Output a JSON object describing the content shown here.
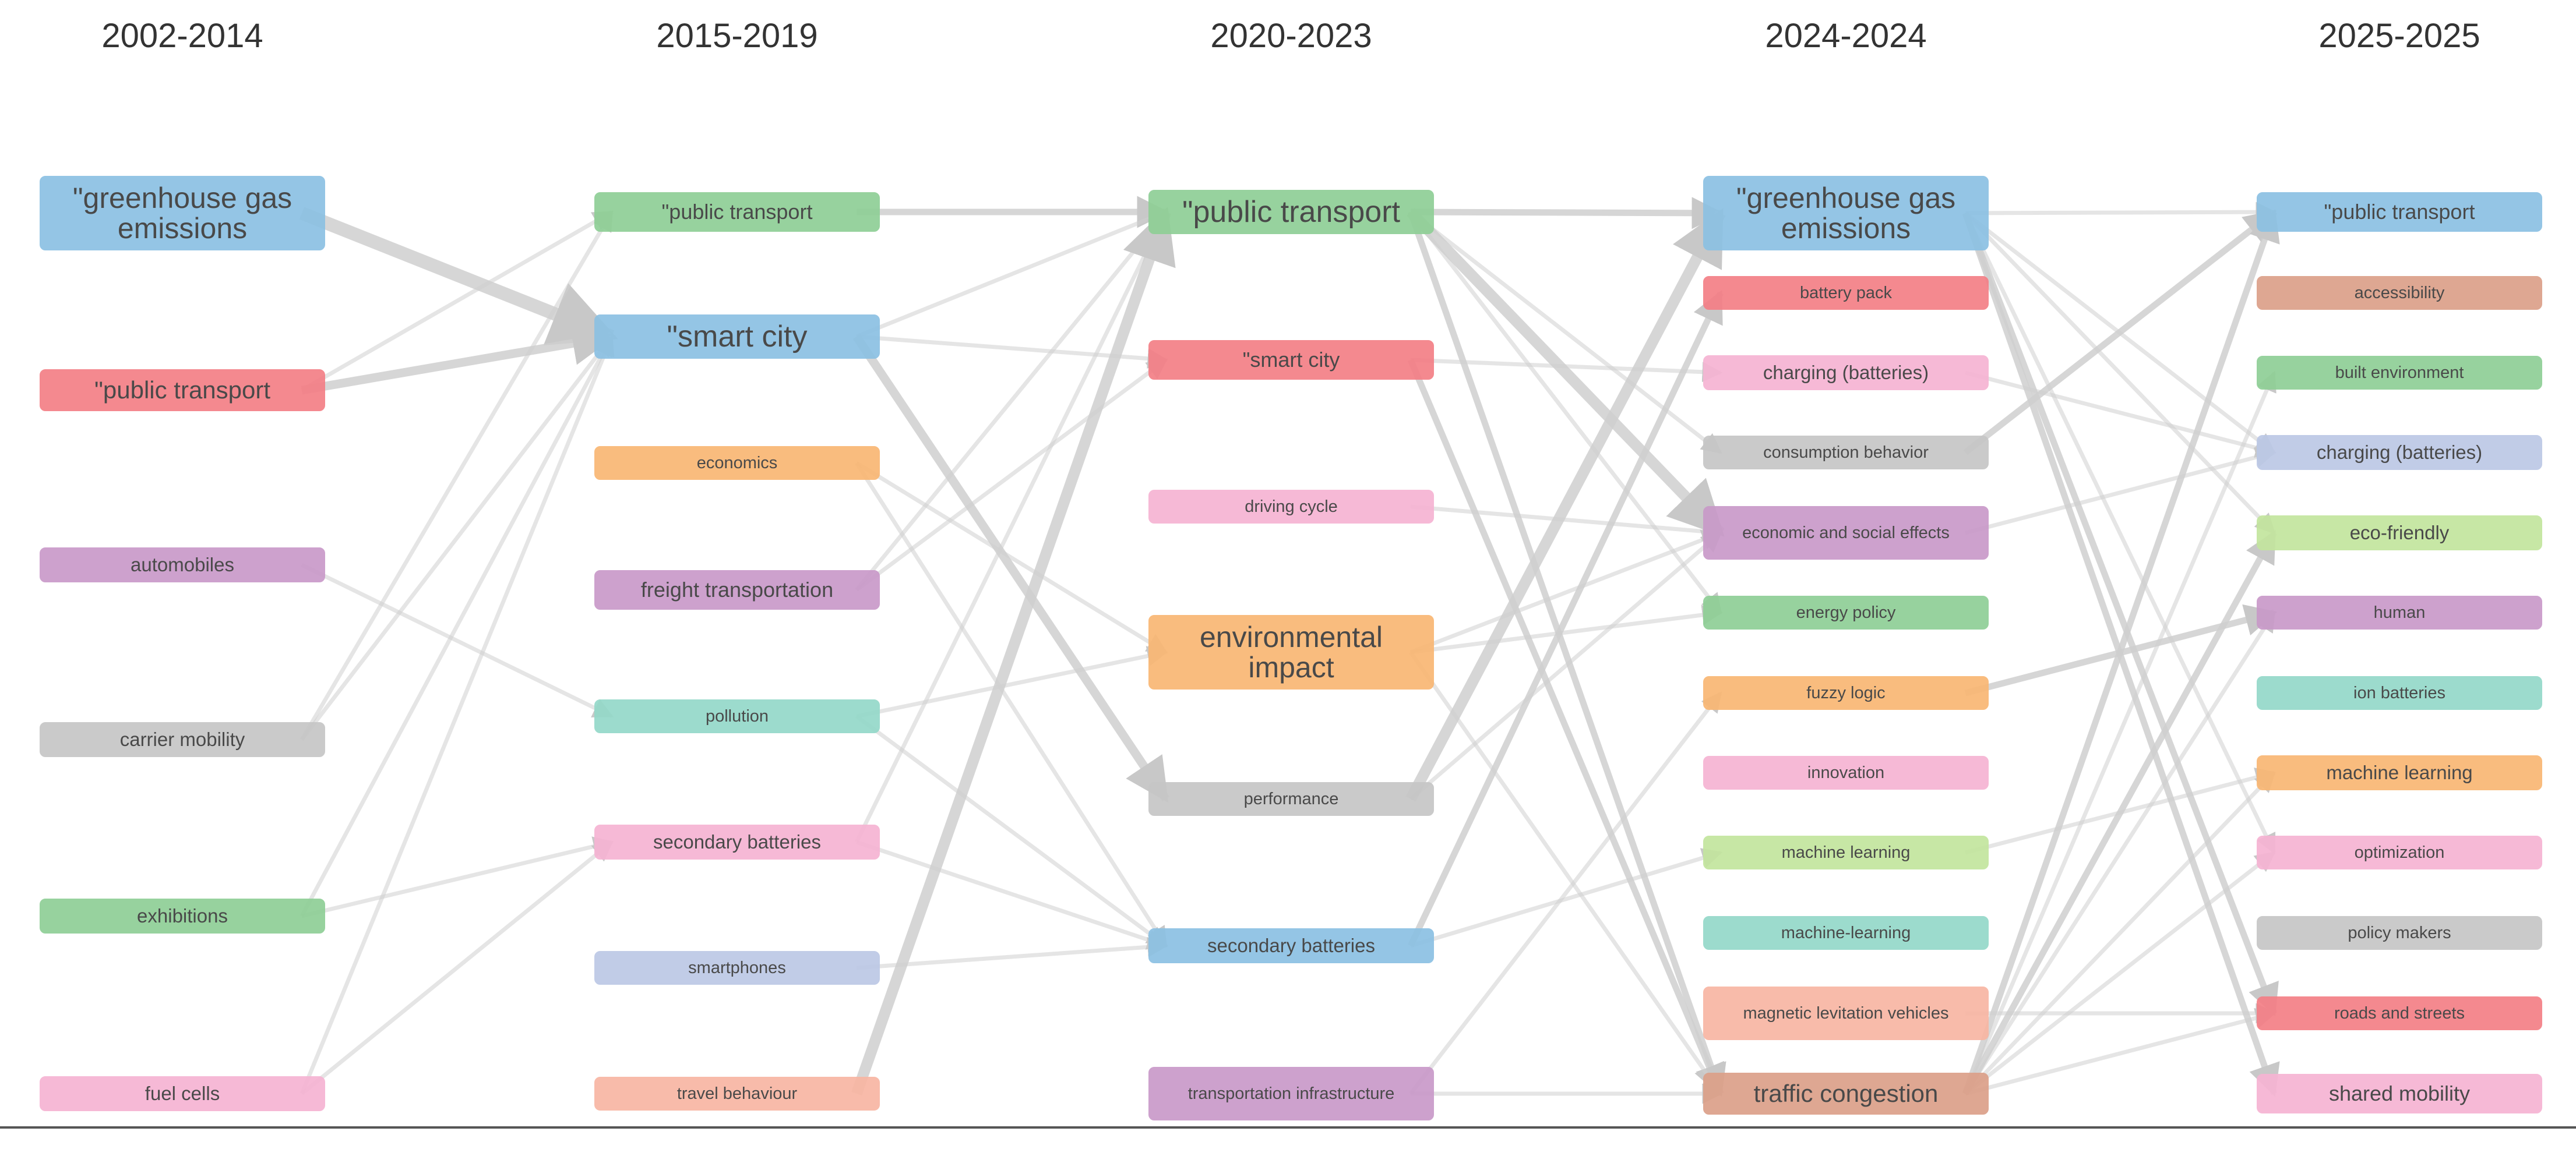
{
  "columns": [
    "2002-2014",
    "2015-2019",
    "2020-2023",
    "2024-2024",
    "2025-2025"
  ],
  "colors": {
    "blue": "#8cc1e3",
    "red": "#f47f86",
    "purple": "#c99ac9",
    "gray": "#c6c6c6",
    "green": "#8fcf96",
    "pink": "#f6b4d3",
    "orange": "#f9b774",
    "teal": "#94d9c9",
    "lavender": "#bcc8e6",
    "salmon": "#f8b6a3",
    "lightgreen": "#c3e59e",
    "brown": "#dca089",
    "link": "#cfcfcf"
  },
  "nodes": [
    {
      "id": "a_ghg",
      "col": 0,
      "label": "\"greenhouse gas emissions",
      "color": "blue",
      "size": "xl"
    },
    {
      "id": "a_pt",
      "col": 0,
      "label": "\"public transport",
      "color": "red",
      "size": "l"
    },
    {
      "id": "a_auto",
      "col": 0,
      "label": "automobiles",
      "color": "purple",
      "size": "s"
    },
    {
      "id": "a_carrier",
      "col": 0,
      "label": "carrier mobility",
      "color": "gray",
      "size": "s"
    },
    {
      "id": "a_exh",
      "col": 0,
      "label": "exhibitions",
      "color": "green",
      "size": "s"
    },
    {
      "id": "a_fuel",
      "col": 0,
      "label": "fuel cells",
      "color": "pink",
      "size": "s"
    },
    {
      "id": "b_pt",
      "col": 1,
      "label": "\"public transport",
      "color": "green",
      "size": "m"
    },
    {
      "id": "b_sc",
      "col": 1,
      "label": "\"smart city",
      "color": "blue",
      "size": "xl1"
    },
    {
      "id": "b_econ",
      "col": 1,
      "label": "economics",
      "color": "orange",
      "size": "xs"
    },
    {
      "id": "b_freight",
      "col": 1,
      "label": "freight transportation",
      "color": "purple",
      "size": "m"
    },
    {
      "id": "b_poll",
      "col": 1,
      "label": "pollution",
      "color": "teal",
      "size": "xs"
    },
    {
      "id": "b_secbat",
      "col": 1,
      "label": "secondary batteries",
      "color": "pink",
      "size": "s"
    },
    {
      "id": "b_phone",
      "col": 1,
      "label": "smartphones",
      "color": "lavender",
      "size": "xs"
    },
    {
      "id": "b_travel",
      "col": 1,
      "label": "travel behaviour",
      "color": "salmon",
      "size": "xs"
    },
    {
      "id": "c_pt",
      "col": 2,
      "label": "\"public transport",
      "color": "green",
      "size": "xl1"
    },
    {
      "id": "c_sc",
      "col": 2,
      "label": "\"smart city",
      "color": "red",
      "size": "m"
    },
    {
      "id": "c_drive",
      "col": 2,
      "label": "driving cycle",
      "color": "pink",
      "size": "xs"
    },
    {
      "id": "c_env",
      "col": 2,
      "label": "environmental impact",
      "color": "orange",
      "size": "xl"
    },
    {
      "id": "c_perf",
      "col": 2,
      "label": "performance",
      "color": "gray",
      "size": "xs"
    },
    {
      "id": "c_secbat",
      "col": 2,
      "label": "secondary batteries",
      "color": "blue",
      "size": "s"
    },
    {
      "id": "c_trans",
      "col": 2,
      "label": "transportation infrastructure",
      "color": "purple",
      "size": "xs2"
    },
    {
      "id": "d_ghg",
      "col": 3,
      "label": "\"greenhouse gas emissions",
      "color": "blue",
      "size": "xl"
    },
    {
      "id": "d_batt",
      "col": 3,
      "label": "battery pack",
      "color": "red",
      "size": "xs"
    },
    {
      "id": "d_charge",
      "col": 3,
      "label": "charging (batteries)",
      "color": "pink",
      "size": "s"
    },
    {
      "id": "d_cons",
      "col": 3,
      "label": "consumption behavior",
      "color": "gray",
      "size": "xs"
    },
    {
      "id": "d_econsoc",
      "col": 3,
      "label": "economic and social effects",
      "color": "purple",
      "size": "xs2"
    },
    {
      "id": "d_energy",
      "col": 3,
      "label": "energy policy",
      "color": "green",
      "size": "xs"
    },
    {
      "id": "d_fuzzy",
      "col": 3,
      "label": "fuzzy logic",
      "color": "orange",
      "size": "xs"
    },
    {
      "id": "d_innov",
      "col": 3,
      "label": "innovation",
      "color": "pink",
      "size": "xs"
    },
    {
      "id": "d_ml1",
      "col": 3,
      "label": "machine learning",
      "color": "lightgreen",
      "size": "xs"
    },
    {
      "id": "d_ml2",
      "col": 3,
      "label": "machine-learning",
      "color": "teal",
      "size": "xs"
    },
    {
      "id": "d_maglev",
      "col": 3,
      "label": "magnetic levitation vehicles",
      "color": "salmon",
      "size": "xs2"
    },
    {
      "id": "d_traffic",
      "col": 3,
      "label": "traffic congestion",
      "color": "brown",
      "size": "l"
    },
    {
      "id": "e_pt",
      "col": 4,
      "label": "\"public transport",
      "color": "blue",
      "size": "m"
    },
    {
      "id": "e_access",
      "col": 4,
      "label": "accessibility",
      "color": "brown",
      "size": "xs"
    },
    {
      "id": "e_built",
      "col": 4,
      "label": "built environment",
      "color": "green",
      "size": "xs"
    },
    {
      "id": "e_charge",
      "col": 4,
      "label": "charging (batteries)",
      "color": "lavender",
      "size": "s"
    },
    {
      "id": "e_eco",
      "col": 4,
      "label": "eco-friendly",
      "color": "lightgreen",
      "size": "s"
    },
    {
      "id": "e_human",
      "col": 4,
      "label": "human",
      "color": "purple",
      "size": "xs"
    },
    {
      "id": "e_ion",
      "col": 4,
      "label": "ion batteries",
      "color": "teal",
      "size": "xs"
    },
    {
      "id": "e_ml",
      "col": 4,
      "label": "machine learning",
      "color": "orange",
      "size": "s"
    },
    {
      "id": "e_opt",
      "col": 4,
      "label": "optimization",
      "color": "pink",
      "size": "xs"
    },
    {
      "id": "e_policy",
      "col": 4,
      "label": "policy makers",
      "color": "gray",
      "size": "xs"
    },
    {
      "id": "e_roads",
      "col": 4,
      "label": "roads and streets",
      "color": "red",
      "size": "xs"
    },
    {
      "id": "e_shared",
      "col": 4,
      "label": "shared mobility",
      "color": "pink",
      "size": "m"
    }
  ],
  "links": [
    [
      "a_ghg",
      "b_sc",
      5
    ],
    [
      "a_pt",
      "b_sc",
      3
    ],
    [
      "a_pt",
      "b_pt",
      1
    ],
    [
      "a_auto",
      "b_poll",
      1
    ],
    [
      "a_carrier",
      "b_sc",
      1
    ],
    [
      "a_carrier",
      "b_pt",
      1
    ],
    [
      "a_exh",
      "b_sc",
      1
    ],
    [
      "a_exh",
      "b_secbat",
      1
    ],
    [
      "a_fuel",
      "b_secbat",
      1
    ],
    [
      "a_fuel",
      "b_sc",
      1
    ],
    [
      "b_pt",
      "c_pt",
      2
    ],
    [
      "b_sc",
      "c_perf",
      3
    ],
    [
      "b_sc",
      "c_pt",
      1
    ],
    [
      "b_sc",
      "c_sc",
      1
    ],
    [
      "b_econ",
      "c_env",
      1
    ],
    [
      "b_econ",
      "c_secbat",
      1
    ],
    [
      "b_freight",
      "c_pt",
      1
    ],
    [
      "b_freight",
      "c_sc",
      1
    ],
    [
      "b_poll",
      "c_env",
      1
    ],
    [
      "b_poll",
      "c_secbat",
      1
    ],
    [
      "b_secbat",
      "c_secbat",
      1
    ],
    [
      "b_secbat",
      "c_pt",
      1
    ],
    [
      "b_phone",
      "c_secbat",
      1
    ],
    [
      "b_travel",
      "c_pt",
      4
    ],
    [
      "c_pt",
      "d_ghg",
      2
    ],
    [
      "c_pt",
      "d_econsoc",
      4
    ],
    [
      "c_pt",
      "d_traffic",
      2
    ],
    [
      "c_pt",
      "d_cons",
      1
    ],
    [
      "c_pt",
      "d_energy",
      1
    ],
    [
      "c_sc",
      "d_traffic",
      2
    ],
    [
      "c_sc",
      "d_charge",
      1
    ],
    [
      "c_drive",
      "d_econsoc",
      1
    ],
    [
      "c_env",
      "d_econsoc",
      1
    ],
    [
      "c_env",
      "d_energy",
      1
    ],
    [
      "c_env",
      "d_traffic",
      1
    ],
    [
      "c_perf",
      "d_ghg",
      4
    ],
    [
      "c_perf",
      "d_econsoc",
      1
    ],
    [
      "c_secbat",
      "d_ml1",
      1
    ],
    [
      "c_secbat",
      "d_batt",
      2
    ],
    [
      "c_trans",
      "d_traffic",
      1
    ],
    [
      "c_trans",
      "d_fuzzy",
      1
    ],
    [
      "d_ghg",
      "e_pt",
      1
    ],
    [
      "d_ghg",
      "e_roads",
      2
    ],
    [
      "d_ghg",
      "e_shared",
      2
    ],
    [
      "d_ghg",
      "e_charge",
      1
    ],
    [
      "d_ghg",
      "e_eco",
      1
    ],
    [
      "d_ghg",
      "e_opt",
      1
    ],
    [
      "d_charge",
      "e_charge",
      1
    ],
    [
      "d_cons",
      "e_pt",
      2
    ],
    [
      "d_econsoc",
      "e_charge",
      1
    ],
    [
      "d_fuzzy",
      "e_human",
      2
    ],
    [
      "d_ml1",
      "e_ml",
      1
    ],
    [
      "d_maglev",
      "e_roads",
      1
    ],
    [
      "d_traffic",
      "e_pt",
      2
    ],
    [
      "d_traffic",
      "e_eco",
      2
    ],
    [
      "d_traffic",
      "e_built",
      1
    ],
    [
      "d_traffic",
      "e_ml",
      1
    ],
    [
      "d_traffic",
      "e_opt",
      1
    ],
    [
      "d_traffic",
      "e_roads",
      1
    ],
    [
      "d_traffic",
      "e_human",
      1
    ]
  ]
}
